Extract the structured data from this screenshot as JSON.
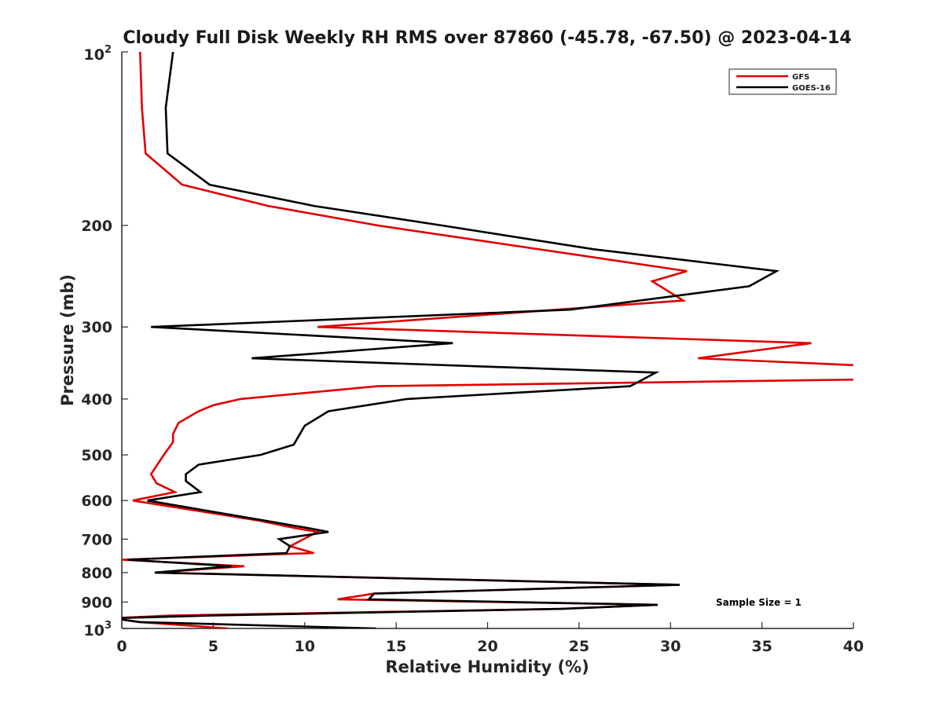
{
  "chart_data": {
    "type": "line",
    "title": "Cloudy Full Disk Weekly RH RMS over 87860 (-45.78, -67.50) @ 2023-04-14",
    "xlabel": "Relative Humidity (%)",
    "ylabel": "Pressure (mb)",
    "xlim": [
      0,
      40
    ],
    "ylim": [
      100,
      1000
    ],
    "y_scale": "log",
    "y_reversed": true,
    "grid": false,
    "legend_position": "top-right",
    "x_ticks": [
      0,
      5,
      10,
      15,
      20,
      25,
      30,
      35,
      40
    ],
    "x_tick_labels": [
      "0",
      "5",
      "10",
      "15",
      "20",
      "25",
      "30",
      "35",
      "40"
    ],
    "y_ticks": [
      200,
      300,
      400,
      500,
      600,
      700,
      800,
      900
    ],
    "y_tick_labels": [
      "200",
      "300",
      "400",
      "500",
      "600",
      "700",
      "800",
      "900"
    ],
    "y_tick_label_top": {
      "base": "10",
      "exp": "2"
    },
    "y_tick_label_bottom": {
      "base": "10",
      "exp": "3"
    },
    "annotation": "Sample Size = 1",
    "series": [
      {
        "name": "GFS",
        "color": "#e00000",
        "points": [
          [
            1.0,
            100
          ],
          [
            1.1,
            125
          ],
          [
            1.3,
            150
          ],
          [
            3.3,
            170
          ],
          [
            8.0,
            185
          ],
          [
            14,
            200
          ],
          [
            30.9,
            240
          ],
          [
            29.0,
            250
          ],
          [
            30.7,
            270
          ],
          [
            10.7,
            300
          ],
          [
            37.7,
            320
          ],
          [
            31.5,
            340
          ],
          [
            40.5,
            350
          ],
          [
            40.5,
            370
          ],
          [
            14,
            380
          ],
          [
            6.5,
            400
          ],
          [
            5.0,
            410
          ],
          [
            4.2,
            420
          ],
          [
            3.1,
            440
          ],
          [
            2.8,
            460
          ],
          [
            2.8,
            475
          ],
          [
            2.3,
            500
          ],
          [
            1.6,
            540
          ],
          [
            1.9,
            560
          ],
          [
            2.9,
            580
          ],
          [
            0.6,
            600
          ],
          [
            7.5,
            650
          ],
          [
            9.5,
            670
          ],
          [
            10.7,
            680
          ],
          [
            9.2,
            720
          ],
          [
            10.5,
            740
          ],
          [
            0,
            760
          ],
          [
            6.7,
            780
          ],
          [
            1.8,
            800
          ],
          [
            30.5,
            840
          ],
          [
            13.8,
            870
          ],
          [
            11.8,
            890
          ],
          [
            29.3,
            910
          ],
          [
            24,
            925
          ],
          [
            2.7,
            950
          ],
          [
            -0.5,
            960
          ],
          [
            1.0,
            975
          ],
          [
            5.8,
            1000
          ]
        ]
      },
      {
        "name": "GOES-16",
        "color": "#000000",
        "points": [
          [
            2.8,
            100
          ],
          [
            2.4,
            125
          ],
          [
            2.5,
            150
          ],
          [
            4.8,
            170
          ],
          [
            10.5,
            185
          ],
          [
            17.5,
            200
          ],
          [
            25.8,
            220
          ],
          [
            35.8,
            240
          ],
          [
            34.3,
            255
          ],
          [
            24.5,
            280
          ],
          [
            1.6,
            300
          ],
          [
            18.1,
            320
          ],
          [
            7.1,
            340
          ],
          [
            29.2,
            360
          ],
          [
            27.8,
            380
          ],
          [
            15.6,
            400
          ],
          [
            11.3,
            420
          ],
          [
            10.0,
            445
          ],
          [
            9.4,
            480
          ],
          [
            7.6,
            500
          ],
          [
            4.2,
            520
          ],
          [
            3.5,
            540
          ],
          [
            3.5,
            555
          ],
          [
            4.3,
            580
          ],
          [
            1.4,
            600
          ],
          [
            7.8,
            650
          ],
          [
            10.2,
            670
          ],
          [
            11.3,
            680
          ],
          [
            8.6,
            700
          ],
          [
            9.2,
            720
          ],
          [
            9.0,
            740
          ],
          [
            0.3,
            760
          ],
          [
            6.0,
            780
          ],
          [
            1.8,
            800
          ],
          [
            30.5,
            840
          ],
          [
            13.8,
            870
          ],
          [
            13.5,
            890
          ],
          [
            29.3,
            910
          ],
          [
            24,
            925
          ],
          [
            4.8,
            950
          ],
          [
            -0.5,
            960
          ],
          [
            1.0,
            975
          ],
          [
            13.9,
            1000
          ]
        ]
      }
    ]
  }
}
